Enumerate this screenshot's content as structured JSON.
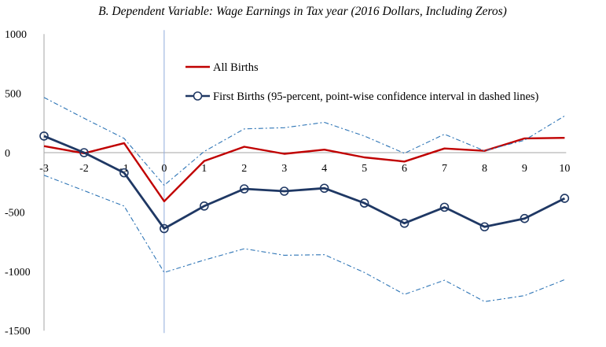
{
  "chart_data": {
    "type": "line",
    "title": "B. Dependent Variable: Wage Earnings in Tax year (2016 Dollars, Including Zeros)",
    "xlabel": "",
    "ylabel": "",
    "x": [
      -3,
      -2,
      -1,
      0,
      1,
      2,
      3,
      4,
      5,
      6,
      7,
      8,
      9,
      10
    ],
    "x_tick_labels": [
      "-3",
      "-2",
      "-1",
      "0",
      "1",
      "2",
      "3",
      "4",
      "5",
      "6",
      "7",
      "8",
      "9",
      "10"
    ],
    "y_ticks": [
      1000,
      500,
      0,
      -500,
      -1000,
      -1500
    ],
    "y_tick_labels": [
      "1000",
      "500",
      "0",
      "-500",
      "-1000",
      "-1500"
    ],
    "ylim": [
      -1500,
      1000
    ],
    "grid": false,
    "reference_line_x": 0,
    "series": [
      {
        "name": "All Births",
        "color": "#c00000",
        "marker": "none",
        "style": "solid",
        "values": [
          55,
          -5,
          80,
          -410,
          -70,
          50,
          -10,
          25,
          -40,
          -75,
          35,
          15,
          120,
          125
        ]
      },
      {
        "name": "First Births (95-percent, point-wise confidence interval in dashed lines)",
        "color": "#1f3864",
        "marker": "circle",
        "style": "solid",
        "values": [
          140,
          0,
          -170,
          -640,
          -450,
          -305,
          -325,
          -300,
          -425,
          -595,
          -460,
          -625,
          -555,
          -385
        ]
      },
      {
        "name": "First Births upper 95% CI",
        "color": "#2e75b6",
        "marker": "none",
        "style": "dashdot",
        "in_legend": false,
        "values": [
          465,
          290,
          120,
          -275,
          10,
          200,
          210,
          255,
          140,
          -5,
          155,
          15,
          105,
          310
        ]
      },
      {
        "name": "First Births lower 95% CI",
        "color": "#2e75b6",
        "marker": "none",
        "style": "dashdot",
        "in_legend": false,
        "values": [
          -190,
          -320,
          -450,
          -1010,
          -905,
          -810,
          -865,
          -860,
          -1010,
          -1195,
          -1075,
          -1255,
          -1205,
          -1070
        ]
      }
    ],
    "legend": [
      {
        "label": "All Births",
        "color": "#c00000",
        "marker": "none"
      },
      {
        "label": "First Births (95-percent, point-wise confidence interval in dashed lines)",
        "color": "#1f3864",
        "marker": "circle"
      }
    ],
    "legend_position": "top-right"
  }
}
